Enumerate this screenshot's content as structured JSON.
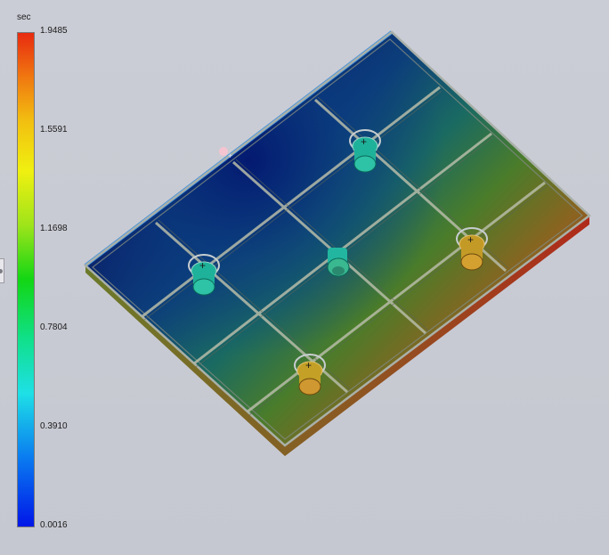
{
  "legend": {
    "unit": "sec",
    "labels": [
      "1.9485",
      "1.5591",
      "1.1698",
      "0.7804",
      "0.3910",
      "0.0016"
    ],
    "max_value": 1.9485,
    "min_value": 0.0016,
    "colors": [
      "#e82a10",
      "#f07810",
      "#f0f010",
      "#12d614",
      "#1ee0e6",
      "#0016e8"
    ]
  },
  "model": {
    "description_icon": "mold-fill-time-plate",
    "bosses": 5
  }
}
